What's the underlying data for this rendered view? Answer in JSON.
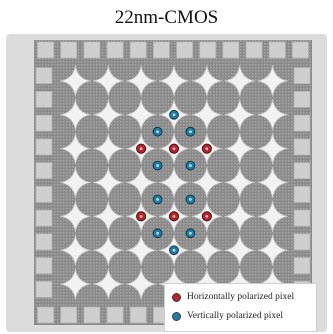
{
  "title": "22nm-CMOS",
  "legend": {
    "items": [
      {
        "label": "Horizontally polarized pixel",
        "color": "#b8232f"
      },
      {
        "label": "Vertically polarized pixel",
        "color": "#1e7fa6"
      }
    ]
  },
  "colors": {
    "frame": "#dcdcdc",
    "substrate": "#8f8f8f",
    "pad": "#cfcfcf",
    "diamond": "#f2f2f2"
  },
  "array": {
    "rows": 7,
    "cols": 7,
    "perimeter_pads_per_side": 12
  },
  "markers": {
    "horizontal": [
      [
        2.5,
        2.5
      ],
      [
        2.5,
        3.5
      ],
      [
        2.5,
        4.5
      ],
      [
        4.5,
        2.5
      ],
      [
        4.5,
        3.5
      ],
      [
        4.5,
        4.5
      ]
    ],
    "vertical": [
      [
        1.5,
        3.5
      ],
      [
        2.0,
        3.0
      ],
      [
        2.0,
        4.0
      ],
      [
        3.0,
        3.0
      ],
      [
        3.0,
        4.0
      ],
      [
        4.0,
        3.0
      ],
      [
        4.0,
        4.0
      ],
      [
        5.0,
        3.0
      ],
      [
        5.0,
        4.0
      ],
      [
        5.5,
        3.5
      ]
    ]
  }
}
